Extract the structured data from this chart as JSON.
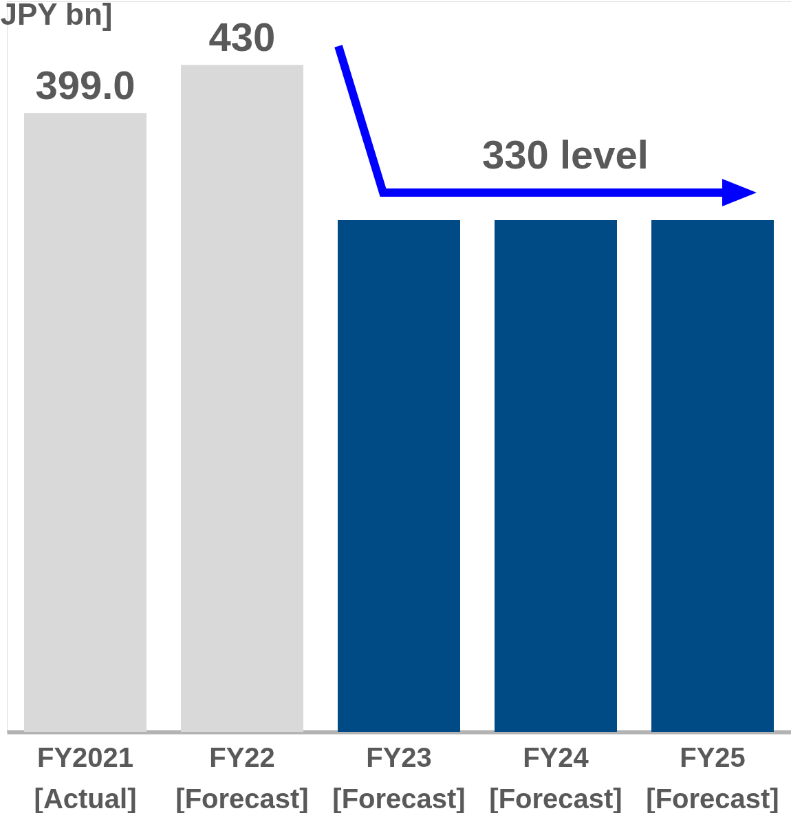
{
  "chart_data": {
    "type": "bar",
    "ylabel": "JPY bn]",
    "categories": [
      "FY2021\n[Actual]",
      "FY22\n[Forecast]",
      "FY23\n[Forecast]",
      "FY24\n[Forecast]",
      "FY25\n[Forecast]"
    ],
    "values": [
      399.0,
      430,
      330,
      330,
      330
    ],
    "colors": [
      "#d9d9d9",
      "#d9d9d9",
      "#004b85",
      "#004b85",
      "#004b85"
    ],
    "value_labels": [
      "399.0",
      "430",
      null,
      null,
      null
    ],
    "annotations": [
      "330 level"
    ],
    "ylim": [
      0,
      471
    ],
    "tick_labels": "x",
    "grid": false,
    "legend": false
  }
}
